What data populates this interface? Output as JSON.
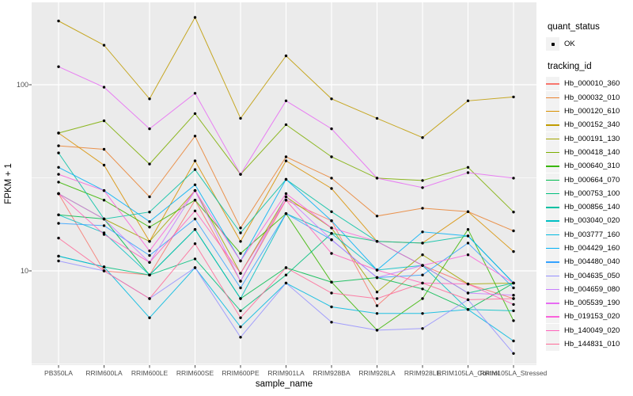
{
  "figure": {
    "background": "#ffffff",
    "panel_background": "#ebebeb",
    "gridline_color": "#ffffff",
    "tick_color": "#333333",
    "tick_label_color": "#4d4d4d"
  },
  "axes": {
    "x_title": "sample_name",
    "y_title": "FPKM + 1",
    "y_tick_labels": [
      "100",
      "10"
    ]
  },
  "legend": {
    "quant_status": {
      "title": "quant_status",
      "items": [
        {
          "label": "OK",
          "marker": "black-point"
        }
      ]
    },
    "tracking_id": {
      "title": "tracking_id"
    }
  },
  "chart_data": {
    "type": "line",
    "title": "",
    "xlabel": "sample_name",
    "ylabel": "FPKM + 1",
    "y_scale": "log10",
    "ylim": [
      3.1,
      260
    ],
    "y_major_gridlines": [
      10,
      100
    ],
    "y_minor_gridlines": [
      3.16,
      31.6
    ],
    "grid": true,
    "legend_position": "right",
    "point_marker": {
      "shape": "dot",
      "color": "#000000"
    },
    "categories": [
      "PB350LA",
      "RRIM600LA",
      "RRIM600LE",
      "RRIM600SE",
      "RRIM600PE",
      "RRIM901LA",
      "RRIM928BA",
      "RRIM928LA",
      "RRIM928LE",
      "RRIM105LA_Control",
      "RRIM105LA_Stressed"
    ],
    "series": [
      {
        "name": "Hb_000010_360",
        "color": "#F8766D",
        "values": [
          26,
          10,
          9.5,
          24,
          8.8,
          24,
          18.6,
          6.5,
          10.7,
          8.5,
          7.1
        ]
      },
      {
        "name": "Hb_000032_010",
        "color": "#EA8331",
        "values": [
          47,
          45,
          25,
          53,
          17,
          41,
          31.5,
          19.7,
          21.7,
          20.8,
          16.4
        ]
      },
      {
        "name": "Hb_000120_610",
        "color": "#D89000",
        "values": [
          55,
          37,
          14.4,
          39,
          14.4,
          39,
          27.7,
          14.4,
          14.1,
          20.8,
          12.7
        ]
      },
      {
        "name": "Hb_000152_340",
        "color": "#C09B00",
        "values": [
          220,
          163,
          84,
          230,
          66,
          143,
          84,
          66,
          52,
          82,
          86
        ]
      },
      {
        "name": "Hb_000191_130",
        "color": "#A3A500",
        "values": [
          26,
          19,
          14.4,
          27,
          9.7,
          25,
          17,
          7.7,
          12.2,
          8.5,
          8.6
        ]
      },
      {
        "name": "Hb_000418_140",
        "color": "#7CAE00",
        "values": [
          55,
          64,
          37.5,
          70,
          33,
          61,
          41,
          31.5,
          30.6,
          36,
          20.7
        ]
      },
      {
        "name": "Hb_000640_310",
        "color": "#39B600",
        "values": [
          30,
          24,
          17.2,
          24,
          12.4,
          20.3,
          8.7,
          4.8,
          7.1,
          16.7,
          5.4
        ]
      },
      {
        "name": "Hb_000664_070",
        "color": "#00BB4E",
        "values": [
          20,
          19,
          9.5,
          16.7,
          7.1,
          10.4,
          8.7,
          9.2,
          8,
          6.2,
          8.6
        ]
      },
      {
        "name": "Hb_000753_100",
        "color": "#00BF7D",
        "values": [
          12,
          10.5,
          9.5,
          11.6,
          6.1,
          9.5,
          15.9,
          14.4,
          10.7,
          7.6,
          8.6
        ]
      },
      {
        "name": "Hb_000856_140",
        "color": "#00C1A3",
        "values": [
          43,
          19,
          20.7,
          35,
          16,
          31,
          20.8,
          14.4,
          14.1,
          15.4,
          8.6
        ]
      },
      {
        "name": "Hb_003040_020",
        "color": "#00BFC4",
        "values": [
          20,
          16,
          9.5,
          16.7,
          7.1,
          20.3,
          15.9,
          10.1,
          10.7,
          6.2,
          6.1
        ]
      },
      {
        "name": "Hb_003777_160",
        "color": "#00BAE0",
        "values": [
          12,
          10.5,
          5.6,
          10.4,
          5,
          8.6,
          6.4,
          5.9,
          5.9,
          6.2,
          4.2
        ]
      },
      {
        "name": "Hb_004429_160",
        "color": "#00B0F6",
        "values": [
          36,
          27,
          18.4,
          29,
          11.3,
          31,
          18.6,
          10.1,
          16.2,
          15.4,
          8.6
        ]
      },
      {
        "name": "Hb_004480_040",
        "color": "#35A2FF",
        "values": [
          18,
          17.5,
          12.1,
          19,
          8.1,
          20.3,
          14.7,
          9.2,
          9.5,
          14.1,
          8.1
        ]
      },
      {
        "name": "Hb_004635_050",
        "color": "#9590FF",
        "values": [
          11.3,
          10,
          7.1,
          10.4,
          4.4,
          8.6,
          5.3,
          4.8,
          4.9,
          7,
          3.6
        ]
      },
      {
        "name": "Hb_004659_080",
        "color": "#C77CFF",
        "values": [
          26,
          19,
          11.1,
          27,
          8.8,
          25,
          14.7,
          9.2,
          10.7,
          7.6,
          7.4
        ]
      },
      {
        "name": "Hb_005539_190",
        "color": "#E76BF3",
        "values": [
          125,
          97,
          58,
          90,
          33,
          82,
          58,
          31.5,
          28,
          33.7,
          31.5
        ]
      },
      {
        "name": "Hb_019153_020",
        "color": "#FA62DB",
        "values": [
          33,
          27,
          12.8,
          27,
          11.3,
          26,
          17,
          14.4,
          10.7,
          12.2,
          8.6
        ]
      },
      {
        "name": "Hb_140049_020",
        "color": "#FF62BC",
        "values": [
          26,
          15.7,
          11.1,
          21,
          9.7,
          24,
          12.4,
          10.1,
          8.6,
          8.5,
          6.6
        ]
      },
      {
        "name": "Hb_144831_010",
        "color": "#FF6A98",
        "values": [
          15,
          10,
          7.1,
          14,
          5.6,
          10.4,
          7.6,
          7.1,
          8.6,
          7,
          7.1
        ]
      }
    ]
  }
}
